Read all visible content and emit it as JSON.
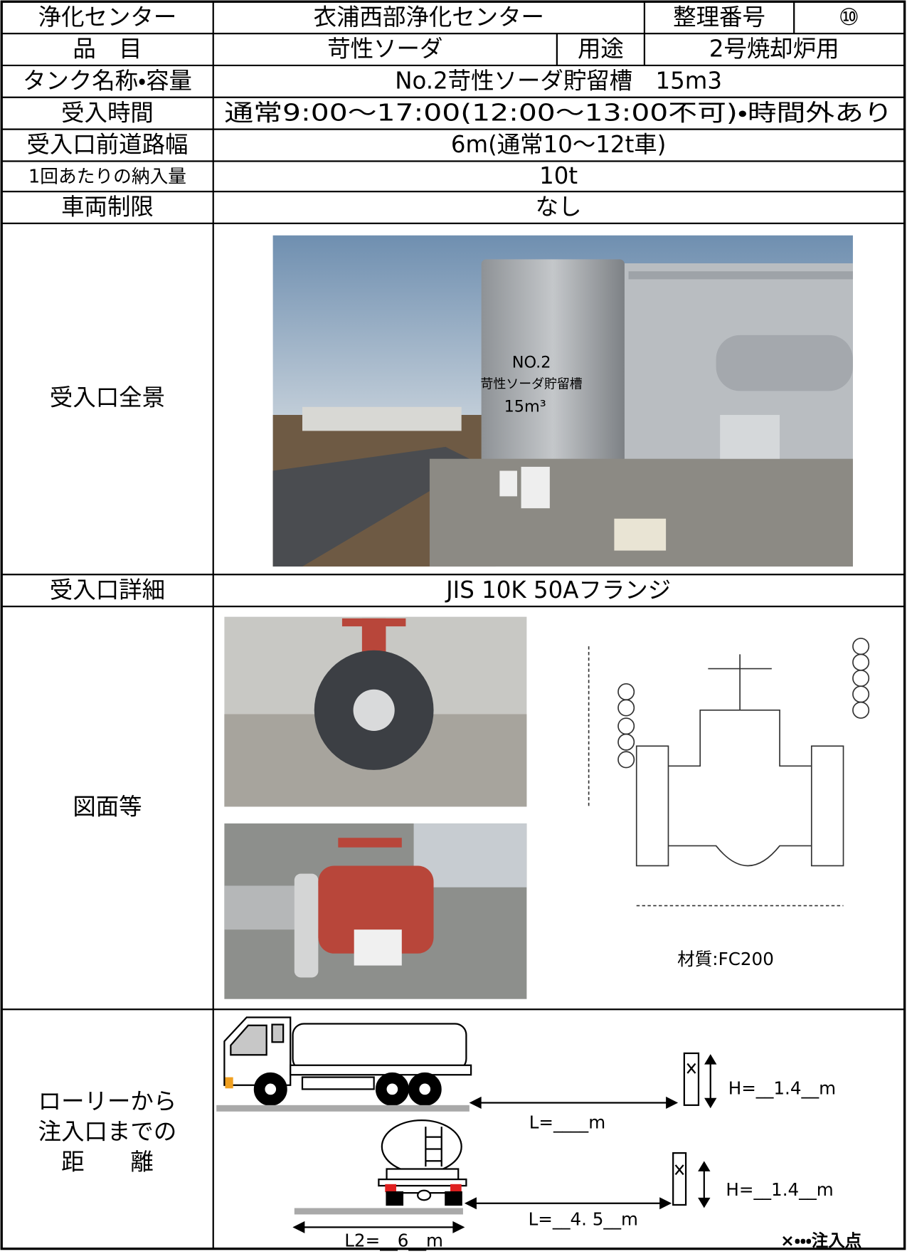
{
  "table": {
    "rows": [
      [
        "浄化センター",
        "衣浦西部浄化センター",
        "整理番号",
        "⑩"
      ],
      [
        "品　目",
        "苛性ソーダ",
        "用途",
        "2号焼却炉用"
      ],
      [
        "タンク名称・容量",
        "No.2苛性ソーダ貯留槽　15m3"
      ],
      [
        "受入時間",
        "通常9:00～17:00(12:00～13:00不可)・時間外あり"
      ],
      [
        "受入口前道路幅",
        "6m(通常10～12t車)"
      ],
      [
        "1回あたりの納入量",
        "10t"
      ],
      [
        "車両制限",
        "なし"
      ],
      [
        "受入口全景"
      ],
      [
        "受入口詳細",
        "JIS 10K 50Aフランジ"
      ],
      [
        "図面等"
      ]
    ]
  },
  "photo_sign": [
    "NO.2",
    "苛性ソーダ貯留槽",
    "15m³"
  ],
  "drawing": {
    "material": "材質:FC200"
  },
  "distance": {
    "label": [
      "ローリーから",
      "注入口までの",
      "距　　離"
    ],
    "side_view": {
      "height": "H=__1.4__m",
      "length": "L=____m"
    },
    "rear_view": {
      "height": "H=__1.4__m",
      "length": "L=__4. 5__m",
      "width": "L2=__6__m"
    },
    "legend": "×・・・注入点"
  }
}
